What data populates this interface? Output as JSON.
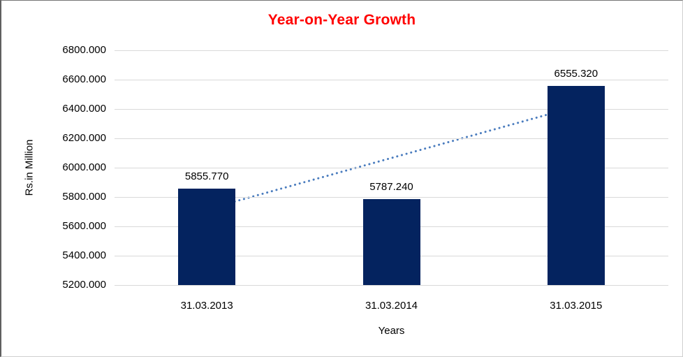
{
  "chart_data": {
    "type": "bar",
    "title": "Year-on-Year Growth",
    "xlabel": "Years",
    "ylabel": "Rs.in Million",
    "categories": [
      "31.03.2013",
      "31.03.2014",
      "31.03.2015"
    ],
    "values": [
      5855.77,
      5787.24,
      6555.32
    ],
    "data_labels": [
      "5855.770",
      "5787.240",
      "6555.320"
    ],
    "ylim": [
      5200,
      6800
    ],
    "ytick_step": 200,
    "ytick_labels": [
      "6800.000",
      "6600.000",
      "6400.000",
      "6200.000",
      "6000.000",
      "5800.000",
      "5600.000",
      "5400.000",
      "5200.000"
    ],
    "grid": true,
    "legend": "none",
    "trendline": {
      "type": "linear",
      "style": "dotted",
      "start_value": 5716.335,
      "end_value": 6415.885
    },
    "colors": {
      "bar": "#04235F",
      "trendline": "#4A7CBE",
      "title": "#FF0000",
      "gridline": "#D9D9D9",
      "text": "#000000"
    }
  }
}
